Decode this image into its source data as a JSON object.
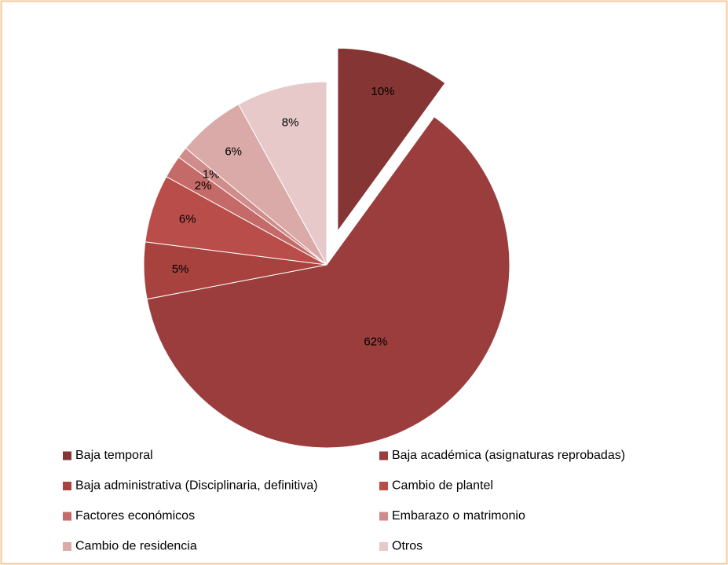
{
  "chart_data": {
    "type": "pie",
    "categories": [
      "Baja temporal",
      "Baja académica (asignaturas reprobadas)",
      "Baja administrativa (Disciplinaria, definitiva)",
      "Cambio de plantel",
      "Factores económicos",
      "Embarazo o matrimonio",
      "Cambio de residencia",
      "Otros"
    ],
    "values": [
      10,
      62,
      5,
      6,
      2,
      1,
      6,
      8
    ],
    "value_labels": [
      "10%",
      "62%",
      "5%",
      "6%",
      "2%",
      "1%",
      "6%",
      "8%"
    ],
    "colors": [
      "#843534",
      "#9a3d3c",
      "#a7423f",
      "#b94d4a",
      "#c46a68",
      "#cf8c8a",
      "#daaaa9",
      "#e7c9c9"
    ]
  }
}
